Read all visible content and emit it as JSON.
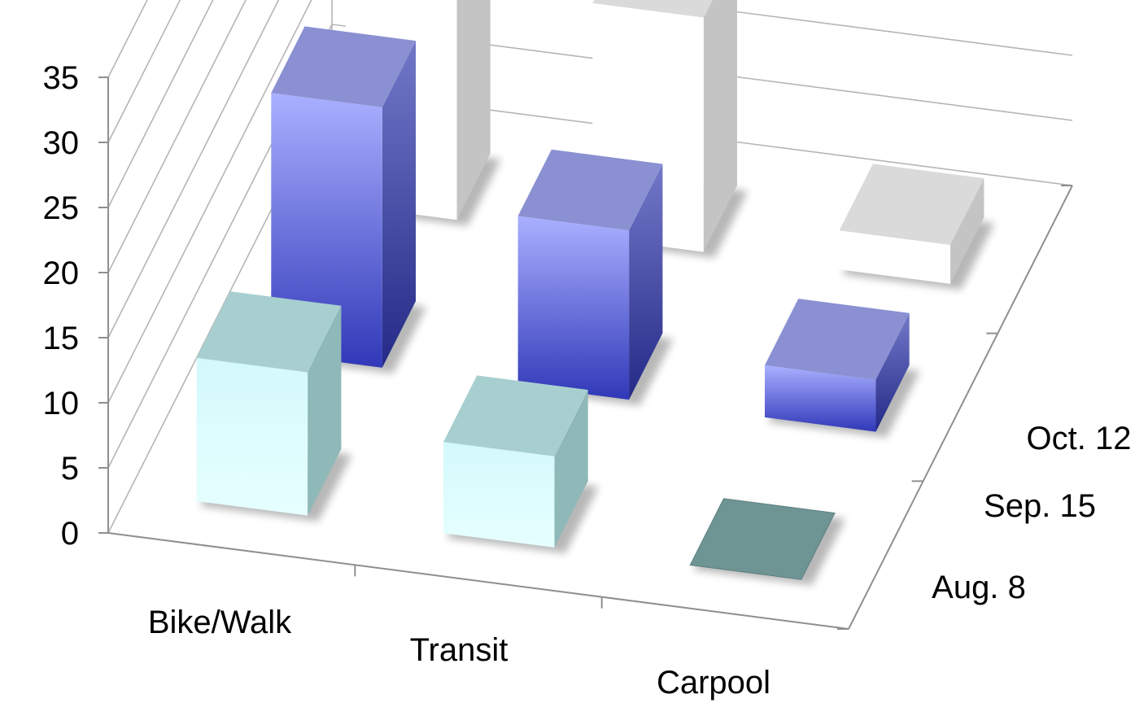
{
  "chart_data": {
    "type": "bar",
    "variant": "3d-column",
    "title": "",
    "xlabel": "",
    "ylabel": "",
    "categories": [
      "Bike/Walk",
      "Transit",
      "Carpool"
    ],
    "series": [
      {
        "name": "Aug. 8",
        "values": [
          11,
          7,
          0
        ],
        "color": "#c8f2f4"
      },
      {
        "name": "Sep. 15",
        "values": [
          20,
          13,
          4
        ],
        "color": "#7f86e6"
      },
      {
        "name": "Oct. 12",
        "values": [
          35,
          18,
          3
        ],
        "color": "#ffffff"
      }
    ],
    "ylim": [
      0,
      35
    ],
    "yticks": [
      0,
      5,
      10,
      15,
      20,
      25,
      30,
      35
    ],
    "grid": true,
    "legend": "none"
  }
}
